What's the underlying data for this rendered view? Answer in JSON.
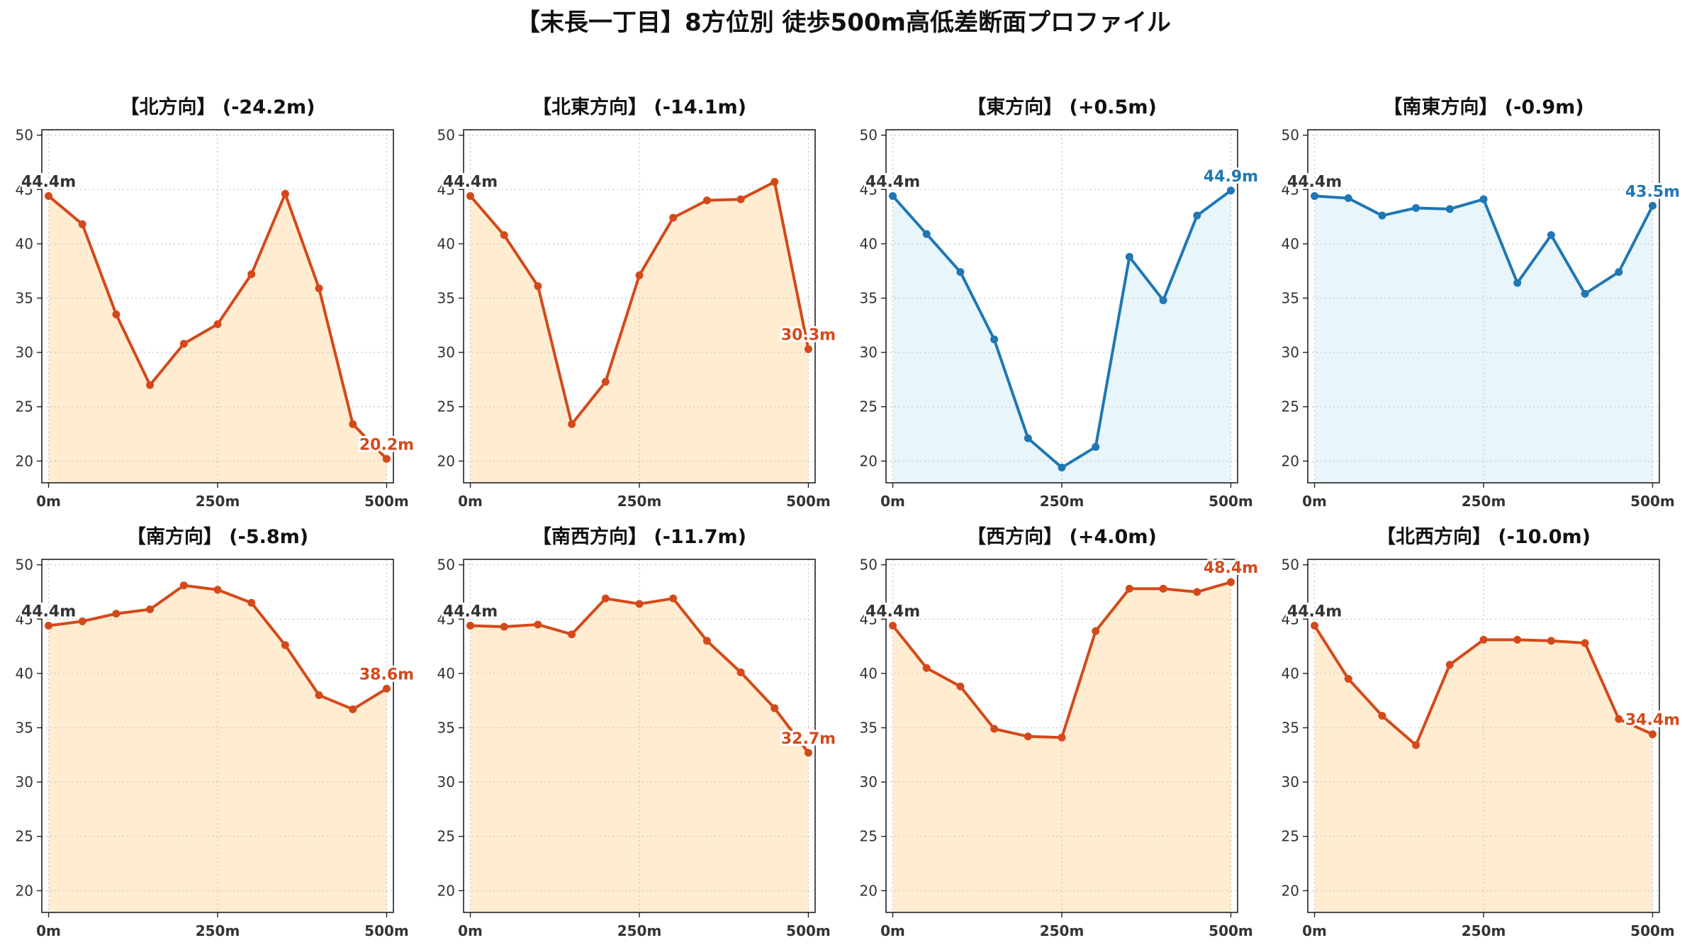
{
  "title": "【末長一丁目】8方位別 徒歩500m高低差断面プロファイル",
  "colors": {
    "down_line": "#d4491a",
    "down_fill": "#ffecd1",
    "up_line": "#1f77b4",
    "up_fill": "#e8f5fb",
    "start_label": "#333333"
  },
  "chart_data": [
    {
      "type": "area",
      "title": "【北方向】 (-24.2m)",
      "trend": "down",
      "x": [
        0,
        50,
        100,
        150,
        200,
        250,
        300,
        350,
        400,
        450,
        500
      ],
      "y": [
        44.4,
        41.8,
        33.5,
        27.0,
        30.8,
        32.6,
        37.2,
        44.6,
        35.9,
        23.4,
        20.2
      ],
      "start_label": "44.4m",
      "end_label": "20.2m",
      "xticks": [
        "0m",
        "250m",
        "500m"
      ],
      "yticks": [
        "20",
        "25",
        "30",
        "35",
        "40",
        "45",
        "50"
      ],
      "ylim": [
        18,
        50.5
      ],
      "xlim": [
        -10,
        510
      ],
      "grid": true
    },
    {
      "type": "area",
      "title": "【北東方向】 (-14.1m)",
      "trend": "down",
      "x": [
        0,
        50,
        100,
        150,
        200,
        250,
        300,
        350,
        400,
        450,
        500
      ],
      "y": [
        44.4,
        40.8,
        36.1,
        23.4,
        27.3,
        37.1,
        42.4,
        44.0,
        44.1,
        45.7,
        30.3
      ],
      "start_label": "44.4m",
      "end_label": "30.3m",
      "xticks": [
        "0m",
        "250m",
        "500m"
      ],
      "yticks": [
        "20",
        "25",
        "30",
        "35",
        "40",
        "45",
        "50"
      ],
      "ylim": [
        18,
        50.5
      ],
      "xlim": [
        -10,
        510
      ],
      "grid": true
    },
    {
      "type": "area",
      "title": "【東方向】 (+0.5m)",
      "trend": "up",
      "x": [
        0,
        50,
        100,
        150,
        200,
        250,
        300,
        350,
        400,
        450,
        500
      ],
      "y": [
        44.4,
        40.9,
        37.4,
        31.2,
        22.1,
        19.4,
        21.3,
        38.8,
        34.8,
        42.6,
        44.9
      ],
      "start_label": "44.4m",
      "end_label": "44.9m",
      "xticks": [
        "0m",
        "250m",
        "500m"
      ],
      "yticks": [
        "20",
        "25",
        "30",
        "35",
        "40",
        "45",
        "50"
      ],
      "ylim": [
        18,
        50.5
      ],
      "xlim": [
        -10,
        510
      ],
      "grid": true
    },
    {
      "type": "area",
      "title": "【南東方向】 (-0.9m)",
      "trend": "up",
      "x": [
        0,
        50,
        100,
        150,
        200,
        250,
        300,
        350,
        400,
        450,
        500
      ],
      "y": [
        44.4,
        44.2,
        42.6,
        43.3,
        43.2,
        44.1,
        36.4,
        40.8,
        35.4,
        37.4,
        43.5
      ],
      "start_label": "44.4m",
      "end_label": "43.5m",
      "xticks": [
        "0m",
        "250m",
        "500m"
      ],
      "yticks": [
        "20",
        "25",
        "30",
        "35",
        "40",
        "45",
        "50"
      ],
      "ylim": [
        18,
        50.5
      ],
      "xlim": [
        -10,
        510
      ],
      "grid": true
    },
    {
      "type": "area",
      "title": "【南方向】 (-5.8m)",
      "trend": "down",
      "x": [
        0,
        50,
        100,
        150,
        200,
        250,
        300,
        350,
        400,
        450,
        500
      ],
      "y": [
        44.4,
        44.8,
        45.5,
        45.9,
        48.1,
        47.7,
        46.5,
        42.6,
        38.0,
        36.7,
        38.6
      ],
      "start_label": "44.4m",
      "end_label": "38.6m",
      "xticks": [
        "0m",
        "250m",
        "500m"
      ],
      "yticks": [
        "20",
        "25",
        "30",
        "35",
        "40",
        "45",
        "50"
      ],
      "ylim": [
        18,
        50.5
      ],
      "xlim": [
        -10,
        510
      ],
      "grid": true
    },
    {
      "type": "area",
      "title": "【南西方向】 (-11.7m)",
      "trend": "down",
      "x": [
        0,
        50,
        100,
        150,
        200,
        250,
        300,
        350,
        400,
        450,
        500
      ],
      "y": [
        44.4,
        44.3,
        44.5,
        43.6,
        46.9,
        46.4,
        46.9,
        43.0,
        40.1,
        36.8,
        32.7
      ],
      "start_label": "44.4m",
      "end_label": "32.7m",
      "xticks": [
        "0m",
        "250m",
        "500m"
      ],
      "yticks": [
        "20",
        "25",
        "30",
        "35",
        "40",
        "45",
        "50"
      ],
      "ylim": [
        18,
        50.5
      ],
      "xlim": [
        -10,
        510
      ],
      "grid": true
    },
    {
      "type": "area",
      "title": "【西方向】 (+4.0m)",
      "trend": "down",
      "x": [
        0,
        50,
        100,
        150,
        200,
        250,
        300,
        350,
        400,
        450,
        500
      ],
      "y": [
        44.4,
        40.5,
        38.8,
        34.9,
        34.2,
        34.1,
        43.9,
        47.8,
        47.8,
        47.5,
        48.4
      ],
      "start_label": "44.4m",
      "end_label": "48.4m",
      "xticks": [
        "0m",
        "250m",
        "500m"
      ],
      "yticks": [
        "20",
        "25",
        "30",
        "35",
        "40",
        "45",
        "50"
      ],
      "ylim": [
        18,
        50.5
      ],
      "xlim": [
        -10,
        510
      ],
      "grid": true
    },
    {
      "type": "area",
      "title": "【北西方向】 (-10.0m)",
      "trend": "down",
      "x": [
        0,
        50,
        100,
        150,
        200,
        250,
        300,
        350,
        400,
        450,
        500
      ],
      "y": [
        44.4,
        39.5,
        36.1,
        33.4,
        40.8,
        43.1,
        43.1,
        43.0,
        42.8,
        35.8,
        34.4
      ],
      "start_label": "44.4m",
      "end_label": "34.4m",
      "xticks": [
        "0m",
        "250m",
        "500m"
      ],
      "yticks": [
        "20",
        "25",
        "30",
        "35",
        "40",
        "45",
        "50"
      ],
      "ylim": [
        18,
        50.5
      ],
      "xlim": [
        -10,
        510
      ],
      "grid": true
    }
  ]
}
